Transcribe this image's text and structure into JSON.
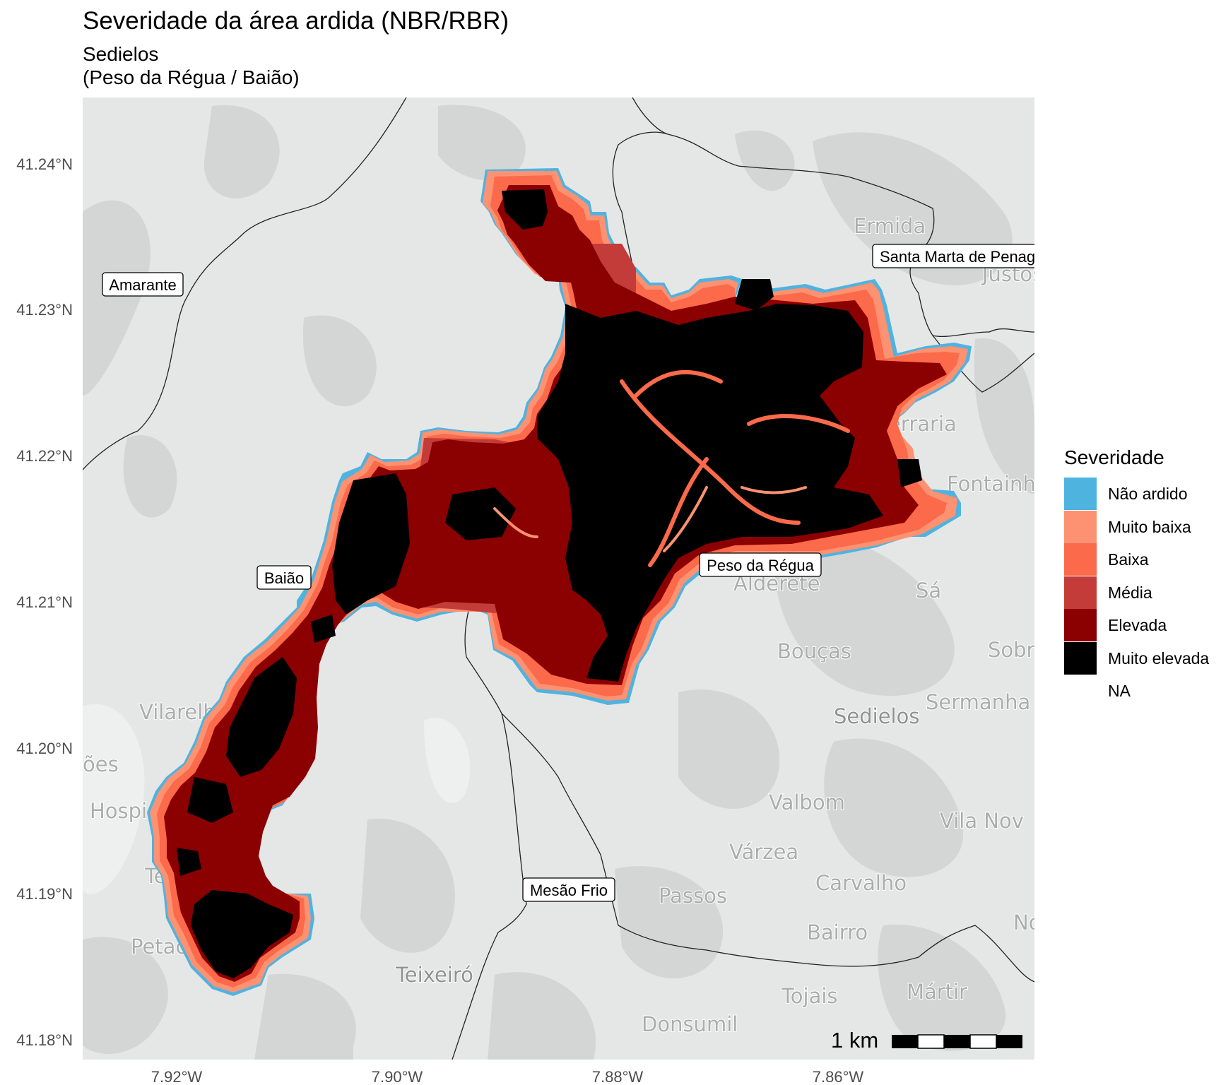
{
  "title": "Severidade da área ardida (NBR/RBR)",
  "subtitle_line1": "Sedielos",
  "subtitle_line2": "(Peso da Régua / Baião)",
  "axes": {
    "y_ticks": [
      "41.24°N",
      "41.23°N",
      "41.22°N",
      "41.21°N",
      "41.20°N",
      "41.19°N",
      "41.18°N"
    ],
    "x_ticks": [
      "7.92°W",
      "7.90°W",
      "7.88°W",
      "7.86°W"
    ]
  },
  "municipality_labels": [
    "Amarante",
    "Santa Marta de Penag",
    "Baião",
    "Peso da Régua",
    "Mesão Frio"
  ],
  "basemap_place_names": [
    "Ermida",
    "Justos",
    "Ferraria",
    "Fontainh",
    "Alderete",
    "Sá",
    "Bouças",
    "Sobr",
    "Sermanha",
    "Sedielos",
    "Vilarelho",
    "ões",
    "Hospi",
    "Valbom",
    "Vila Nov",
    "Várzea",
    "Carvalho",
    "Passos",
    "Tei",
    "Bairro",
    "No",
    "Petac",
    "Teixeiró",
    "Tojais",
    "Mártir",
    "Donsumil"
  ],
  "legend": {
    "title": "Severidade",
    "items": [
      {
        "label": "Não ardido",
        "color": "#4FB3DF"
      },
      {
        "label": "Muito baixa",
        "color": "#FC9272"
      },
      {
        "label": "Baixa",
        "color": "#FB6A4A"
      },
      {
        "label": "Média",
        "color": "#C43C39"
      },
      {
        "label": "Elevada",
        "color": "#8B0000"
      },
      {
        "label": "Muito elevada",
        "color": "#000000"
      },
      {
        "label": "NA",
        "color": ""
      }
    ]
  },
  "scale_bar": {
    "label": "1 km"
  },
  "colors": {
    "basemap_background": "#E5E7E6",
    "basemap_dark": "#D3D6D5",
    "basemap_light": "#EEF0EF"
  }
}
